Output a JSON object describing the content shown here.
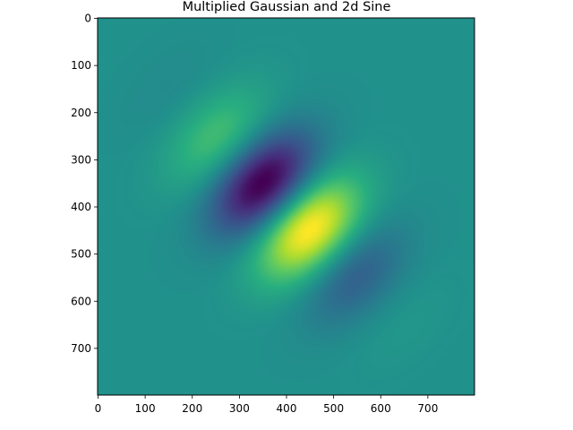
{
  "chart_data": {
    "type": "heatmap",
    "title": "Multiplied Gaussian and 2d Sine",
    "xlabel": "",
    "ylabel": "",
    "xlim": [
      0,
      800
    ],
    "ylim": [
      800,
      0
    ],
    "y_axis_inverted": true,
    "colormap": "viridis",
    "grid": false,
    "legend": "none",
    "x_ticks": [
      0,
      100,
      200,
      300,
      400,
      500,
      600,
      700
    ],
    "x_tick_labels": [
      "0",
      "100",
      "200",
      "300",
      "400",
      "500",
      "600",
      "700"
    ],
    "y_ticks": [
      0,
      100,
      200,
      300,
      400,
      500,
      600,
      700
    ],
    "y_tick_labels": [
      "0",
      "100",
      "200",
      "300",
      "400",
      "500",
      "600",
      "700"
    ],
    "grid_size": [
      800,
      800
    ],
    "background_level": 0.5,
    "extrema": [
      {
        "kind": "min",
        "x": 340,
        "y": 355,
        "normalized_value": 0.0
      },
      {
        "kind": "max",
        "x": 455,
        "y": 455,
        "normalized_value": 1.0
      }
    ],
    "shape": {
      "center": [
        400,
        400
      ],
      "gaussian_sigma_along_diagonal": 150,
      "gaussian_sigma_across_diagonal": 90,
      "sine_axis": "diagonal (increasing x and y)",
      "sine_period": 320
    }
  }
}
